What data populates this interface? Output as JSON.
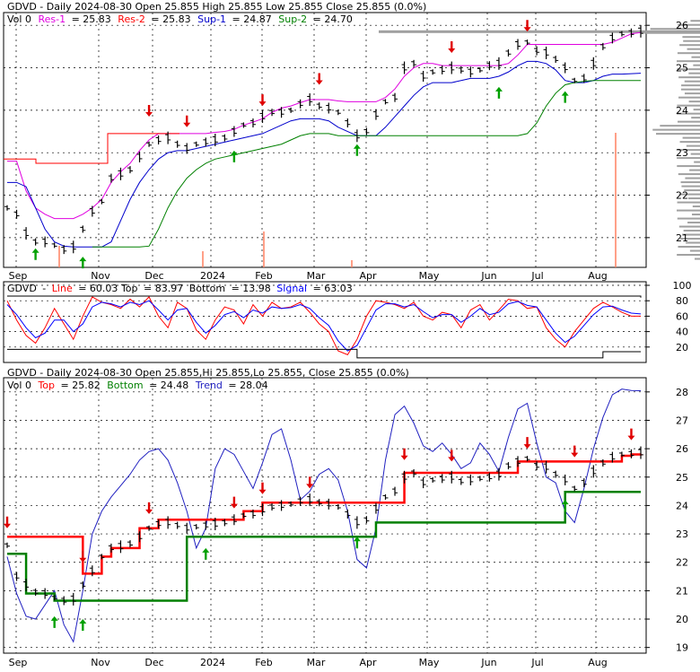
{
  "colors": {
    "background": "#ffffff",
    "frame": "#000000",
    "grid": "#000000",
    "price": "#000000",
    "res": "#e000e0",
    "res2": "#ff0000",
    "sup1": "#0000cc",
    "sup2": "#008000",
    "up_arrow": "#00a000",
    "down_arrow": "#e00000",
    "volume": "#ff8060",
    "volume_profile": "#a0a0a0",
    "stoch_line": "#ff0000",
    "stoch_signal": "#0000ff",
    "trend": "#2020c0",
    "top_band": "#ff0000",
    "bottom_band": "#008000"
  },
  "x_labels": [
    "Sep",
    "Nov",
    "Dec",
    "2024",
    "Feb",
    "Mar",
    "Apr",
    "May",
    "Jun",
    "Jul",
    "Aug"
  ],
  "chart_data": [
    {
      "type": "line",
      "panel": "price",
      "title": "GDVD - Daily 2024-08-30 Open 25.855  High 25.855  Low 25.855  Close 25.855 (0.0%)",
      "legend": {
        "vol": "Vol 0",
        "items": [
          {
            "label": "Res-1",
            "value": "= 25.83"
          },
          {
            "label": "Res-2",
            "value": "= 25.83"
          },
          {
            "label": "Sup-1",
            "value": "= 24.87"
          },
          {
            "label": "Sup-2",
            "value": "= 24.70"
          }
        ]
      },
      "ylim": [
        20.3,
        26.3
      ],
      "y_ticks": [
        21,
        22,
        23,
        24,
        25,
        26
      ],
      "series": [
        {
          "name": "Close",
          "values": [
            21.7,
            21.55,
            21.1,
            20.9,
            20.9,
            20.82,
            20.72,
            20.78,
            21.2,
            21.62,
            21.85,
            22.4,
            22.5,
            22.6,
            22.9,
            23.2,
            23.3,
            23.35,
            23.2,
            23.1,
            23.2,
            23.25,
            23.3,
            23.35,
            23.5,
            23.65,
            23.7,
            23.85,
            23.95,
            23.95,
            24.0,
            24.15,
            24.25,
            24.1,
            24.05,
            23.95,
            23.7,
            23.4,
            23.5,
            23.9,
            24.2,
            24.3,
            25.0,
            25.1,
            24.8,
            24.9,
            24.95,
            25.0,
            24.95,
            24.9,
            24.95,
            25.05,
            25.1,
            25.35,
            25.55,
            25.6,
            25.4,
            25.35,
            25.2,
            25.0,
            24.7,
            24.75,
            25.1,
            25.5,
            25.7,
            25.8,
            25.82,
            25.86
          ]
        },
        {
          "name": "Res-1",
          "values": [
            22.8,
            22.8,
            22.1,
            21.7,
            21.55,
            21.45,
            21.45,
            21.45,
            21.55,
            21.7,
            21.9,
            22.3,
            22.55,
            22.75,
            23.05,
            23.3,
            23.45,
            23.45,
            23.45,
            23.45,
            23.45,
            23.45,
            23.48,
            23.5,
            23.55,
            23.65,
            23.72,
            23.8,
            23.95,
            24.05,
            24.1,
            24.18,
            24.25,
            24.25,
            24.25,
            24.22,
            24.2,
            24.2,
            24.2,
            24.2,
            24.3,
            24.5,
            24.8,
            25.0,
            25.1,
            25.1,
            25.05,
            25.05,
            25.05,
            25.05,
            25.05,
            25.05,
            25.05,
            25.1,
            25.3,
            25.55,
            25.55,
            25.55,
            25.55,
            25.55,
            25.55,
            25.55,
            25.55,
            25.55,
            25.6,
            25.7,
            25.8,
            25.83
          ]
        },
        {
          "name": "Sup-1",
          "values": [
            22.3,
            22.3,
            22.2,
            21.7,
            21.2,
            20.9,
            20.8,
            20.78,
            20.78,
            20.78,
            20.78,
            20.9,
            21.4,
            21.9,
            22.3,
            22.6,
            22.85,
            23.0,
            23.05,
            23.05,
            23.1,
            23.15,
            23.2,
            23.25,
            23.3,
            23.35,
            23.4,
            23.45,
            23.55,
            23.65,
            23.75,
            23.8,
            23.8,
            23.8,
            23.75,
            23.6,
            23.5,
            23.4,
            23.4,
            23.4,
            23.6,
            23.85,
            24.1,
            24.35,
            24.55,
            24.65,
            24.65,
            24.65,
            24.7,
            24.75,
            24.75,
            24.75,
            24.8,
            24.9,
            25.05,
            25.15,
            25.15,
            25.1,
            24.95,
            24.7,
            24.65,
            24.65,
            24.7,
            24.8,
            24.85,
            24.85,
            24.86,
            24.87
          ]
        },
        {
          "name": "Sup-2",
          "values": [
            null,
            null,
            null,
            null,
            null,
            null,
            null,
            null,
            null,
            20.78,
            20.78,
            20.78,
            20.78,
            20.78,
            20.78,
            20.8,
            21.2,
            21.7,
            22.1,
            22.4,
            22.6,
            22.75,
            22.85,
            22.9,
            22.95,
            23.0,
            23.05,
            23.1,
            23.15,
            23.2,
            23.3,
            23.4,
            23.45,
            23.45,
            23.45,
            23.4,
            23.4,
            23.4,
            23.4,
            23.4,
            23.4,
            23.4,
            23.4,
            23.4,
            23.4,
            23.4,
            23.4,
            23.4,
            23.4,
            23.4,
            23.4,
            23.4,
            23.4,
            23.4,
            23.4,
            23.45,
            23.7,
            24.1,
            24.4,
            24.6,
            24.65,
            24.68,
            24.7,
            24.7,
            24.7,
            24.7,
            24.7,
            24.7
          ]
        }
      ],
      "down_arrows": [
        {
          "i": 15,
          "v": 23.85
        },
        {
          "i": 19,
          "v": 23.6
        },
        {
          "i": 27,
          "v": 24.1
        },
        {
          "i": 33,
          "v": 24.6
        },
        {
          "i": 47,
          "v": 25.35
        },
        {
          "i": 55,
          "v": 25.85
        }
      ],
      "up_arrows": [
        {
          "i": 3,
          "v": 20.75
        },
        {
          "i": 8,
          "v": 20.55
        },
        {
          "i": 24,
          "v": 23.05
        },
        {
          "i": 37,
          "v": 23.2
        },
        {
          "i": 52,
          "v": 24.55
        },
        {
          "i": 59,
          "v": 24.45
        }
      ]
    },
    {
      "type": "line",
      "panel": "stochastic",
      "title": "GDVD",
      "legend": {
        "items": [
          {
            "label": "Line",
            "value": "= 60.03"
          },
          {
            "label": "Top",
            "value": "= 83.97"
          },
          {
            "label": "Bottom",
            "value": "= 13.98"
          },
          {
            "label": "Signal",
            "value": "= 63.03"
          }
        ]
      },
      "ylim": [
        0,
        100
      ],
      "y_ticks": [
        20,
        40,
        60,
        80,
        100
      ],
      "series": [
        {
          "name": "Line",
          "values": [
            80,
            55,
            35,
            25,
            45,
            70,
            50,
            30,
            60,
            85,
            78,
            75,
            70,
            82,
            72,
            85,
            60,
            45,
            78,
            70,
            42,
            30,
            55,
            72,
            68,
            50,
            75,
            60,
            78,
            70,
            72,
            78,
            65,
            50,
            40,
            15,
            10,
            30,
            60,
            80,
            78,
            75,
            70,
            78,
            60,
            55,
            65,
            62,
            45,
            68,
            75,
            55,
            68,
            82,
            80,
            70,
            72,
            45,
            30,
            20,
            40,
            55,
            70,
            78,
            72,
            65,
            60,
            60
          ]
        },
        {
          "name": "Signal",
          "values": [
            75,
            62,
            45,
            32,
            38,
            55,
            55,
            40,
            50,
            72,
            78,
            76,
            72,
            78,
            75,
            80,
            68,
            55,
            68,
            70,
            52,
            38,
            48,
            62,
            66,
            58,
            68,
            64,
            72,
            70,
            71,
            75,
            70,
            58,
            48,
            28,
            15,
            22,
            45,
            68,
            76,
            76,
            72,
            75,
            66,
            58,
            62,
            62,
            52,
            60,
            70,
            62,
            65,
            76,
            79,
            74,
            72,
            55,
            38,
            26,
            34,
            48,
            62,
            72,
            73,
            68,
            64,
            63
          ]
        },
        {
          "name": "Top",
          "values": [
            86,
            86,
            86,
            86,
            86,
            86,
            86,
            86,
            86,
            86,
            86,
            86,
            86,
            86,
            86,
            86,
            86,
            86,
            86,
            86,
            86,
            86,
            86,
            86,
            86,
            86,
            86,
            86,
            86,
            86,
            86,
            86,
            86,
            86,
            86,
            86,
            86,
            86,
            86,
            86,
            86,
            86,
            86,
            86,
            86,
            86,
            86,
            86,
            86,
            86,
            86,
            86,
            86,
            86,
            86,
            86,
            86,
            86,
            86,
            86,
            86,
            86,
            86,
            86,
            86,
            86,
            86,
            84
          ]
        },
        {
          "name": "Bottom",
          "values": [
            17,
            17,
            17,
            17,
            17,
            17,
            17,
            17,
            17,
            17,
            17,
            17,
            17,
            17,
            17,
            17,
            17,
            17,
            17,
            17,
            17,
            17,
            17,
            17,
            17,
            17,
            17,
            17,
            17,
            17,
            17,
            17,
            17,
            17,
            17,
            17,
            17,
            6,
            6,
            6,
            6,
            6,
            6,
            6,
            6,
            6,
            6,
            6,
            6,
            6,
            6,
            6,
            6,
            6,
            6,
            6,
            6,
            6,
            6,
            6,
            6,
            6,
            6,
            14,
            14,
            14,
            14,
            14
          ]
        }
      ]
    },
    {
      "type": "line",
      "panel": "trend",
      "title": "GDVD - Daily 2024-08-30 Open 25.855,Hi 25.855,Lo 25.855, Close 25.855 (0.0%)",
      "legend": {
        "vol": "Vol 0",
        "items": [
          {
            "label": "Top",
            "value": "= 25.82"
          },
          {
            "label": "Bottom",
            "value": "= 24.48"
          },
          {
            "label": "Trend",
            "value": "= 28.04"
          }
        ]
      },
      "ylim": [
        18.8,
        28.5
      ],
      "y_ticks": [
        19,
        20,
        21,
        22,
        23,
        24,
        25,
        26,
        27,
        28
      ],
      "series": [
        {
          "name": "Close",
          "values": [
            22.6,
            21.5,
            21.2,
            20.95,
            20.9,
            20.75,
            20.65,
            20.7,
            21.2,
            21.7,
            22.2,
            22.5,
            22.55,
            22.65,
            22.9,
            23.2,
            23.35,
            23.4,
            23.3,
            23.2,
            23.25,
            23.3,
            23.35,
            23.4,
            23.5,
            23.65,
            23.7,
            23.85,
            23.95,
            24.0,
            24.05,
            24.15,
            24.2,
            24.1,
            24.05,
            23.95,
            23.7,
            23.4,
            23.5,
            23.9,
            24.3,
            24.5,
            25.0,
            25.15,
            24.8,
            24.9,
            24.95,
            25.0,
            24.85,
            24.9,
            24.95,
            25.0,
            25.1,
            25.4,
            25.55,
            25.65,
            25.4,
            25.35,
            25.1,
            24.9,
            24.6,
            24.8,
            25.2,
            25.5,
            25.7,
            25.8,
            25.82,
            25.86
          ]
        },
        {
          "name": "Trend",
          "values": [
            22.2,
            20.9,
            20.1,
            20.0,
            20.5,
            21.0,
            19.8,
            19.2,
            21.0,
            23.0,
            23.8,
            24.3,
            24.7,
            25.1,
            25.6,
            25.9,
            26.0,
            25.6,
            24.8,
            23.8,
            22.5,
            23.2,
            25.3,
            26.0,
            25.8,
            25.2,
            24.6,
            25.5,
            26.5,
            26.7,
            25.6,
            24.2,
            24.5,
            25.1,
            25.3,
            24.9,
            23.8,
            22.1,
            21.8,
            23.2,
            25.6,
            27.2,
            27.5,
            26.9,
            26.1,
            25.9,
            26.2,
            25.8,
            25.3,
            25.5,
            26.2,
            25.8,
            25.2,
            26.4,
            27.4,
            27.6,
            26.2,
            25.0,
            24.8,
            23.8,
            23.4,
            24.6,
            26.0,
            27.1,
            27.9,
            28.1,
            28.05,
            28.04
          ]
        },
        {
          "name": "Top",
          "values": [
            22.9,
            22.9,
            22.9,
            22.9,
            22.9,
            22.9,
            22.9,
            22.9,
            21.6,
            21.6,
            22.2,
            22.5,
            22.5,
            22.5,
            23.2,
            23.2,
            23.5,
            23.5,
            23.5,
            23.5,
            23.5,
            23.5,
            23.5,
            23.5,
            23.5,
            23.8,
            23.8,
            24.1,
            24.1,
            24.1,
            24.1,
            24.1,
            24.1,
            24.1,
            24.1,
            24.1,
            24.1,
            24.1,
            24.1,
            24.1,
            24.1,
            24.1,
            25.15,
            25.15,
            25.15,
            25.15,
            25.15,
            25.15,
            25.15,
            25.15,
            25.15,
            25.15,
            25.15,
            25.15,
            25.55,
            25.55,
            25.55,
            25.55,
            25.55,
            25.55,
            25.55,
            25.55,
            25.55,
            25.55,
            25.55,
            25.75,
            25.8,
            25.82
          ]
        },
        {
          "name": "Bottom",
          "values": [
            22.3,
            22.3,
            20.9,
            20.9,
            20.9,
            20.65,
            20.65,
            20.65,
            20.65,
            20.65,
            20.65,
            20.65,
            20.65,
            20.65,
            20.65,
            20.65,
            20.65,
            20.65,
            20.65,
            22.9,
            22.9,
            22.9,
            22.9,
            22.9,
            22.9,
            22.9,
            22.9,
            22.9,
            22.9,
            22.9,
            22.9,
            22.9,
            22.9,
            22.9,
            22.9,
            22.9,
            22.9,
            22.9,
            22.9,
            23.4,
            23.4,
            23.4,
            23.4,
            23.4,
            23.4,
            23.4,
            23.4,
            23.4,
            23.4,
            23.4,
            23.4,
            23.4,
            23.4,
            23.4,
            23.4,
            23.4,
            23.4,
            23.4,
            23.4,
            24.48,
            24.48,
            24.48,
            24.48,
            24.48,
            24.48,
            24.48,
            24.48,
            24.48
          ]
        }
      ],
      "down_arrows": [
        {
          "i": 0,
          "v": 23.2
        },
        {
          "i": 8,
          "v": 22.0
        },
        {
          "i": 15,
          "v": 23.7
        },
        {
          "i": 24,
          "v": 23.9
        },
        {
          "i": 27,
          "v": 24.4
        },
        {
          "i": 32,
          "v": 24.6
        },
        {
          "i": 42,
          "v": 25.6
        },
        {
          "i": 47,
          "v": 25.55
        },
        {
          "i": 55,
          "v": 26.0
        },
        {
          "i": 60,
          "v": 25.7
        },
        {
          "i": 66,
          "v": 26.3
        }
      ],
      "up_arrows": [
        {
          "i": 5,
          "v": 20.1
        },
        {
          "i": 8,
          "v": 20.0
        },
        {
          "i": 21,
          "v": 22.5
        },
        {
          "i": 37,
          "v": 22.9
        },
        {
          "i": 59,
          "v": 24.2
        }
      ]
    }
  ]
}
